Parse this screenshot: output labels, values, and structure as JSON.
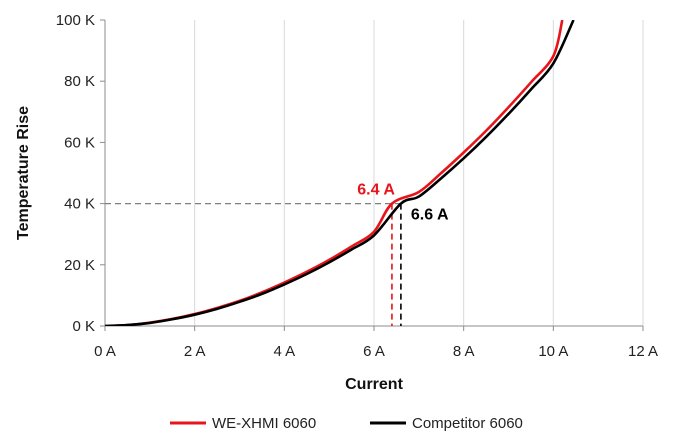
{
  "chart_data": {
    "type": "line",
    "title": "",
    "xlabel": "Current",
    "ylabel": "Temperature Rise",
    "xlim": [
      0,
      12
    ],
    "ylim": [
      0,
      100
    ],
    "x_ticks": [
      {
        "value": 0,
        "label": "0 A"
      },
      {
        "value": 2,
        "label": "2 A"
      },
      {
        "value": 4,
        "label": "4 A"
      },
      {
        "value": 6,
        "label": "6 A"
      },
      {
        "value": 8,
        "label": "8 A"
      },
      {
        "value": 10,
        "label": "10 A"
      },
      {
        "value": 12,
        "label": "12 A"
      }
    ],
    "y_ticks": [
      {
        "value": 0,
        "label": "0 K"
      },
      {
        "value": 20,
        "label": "20 K"
      },
      {
        "value": 40,
        "label": "40 K"
      },
      {
        "value": 60,
        "label": "60 K"
      },
      {
        "value": 80,
        "label": "80 K"
      },
      {
        "value": 100,
        "label": "100 K"
      }
    ],
    "grid": {
      "vertical": true,
      "horizontal": false
    },
    "legend_position": "bottom",
    "series": [
      {
        "name": "WE-XHMI 6060",
        "color": "#e8141b",
        "x": [
          0,
          0.5,
          1,
          1.5,
          2,
          2.5,
          3,
          3.5,
          4,
          4.5,
          5,
          5.5,
          6,
          6.4,
          7,
          7.5,
          8,
          8.5,
          9,
          9.5,
          10,
          10.2
        ],
        "y": [
          0,
          0.3,
          1.1,
          2.3,
          3.9,
          5.9,
          8.2,
          11.0,
          14.2,
          17.7,
          21.6,
          26.0,
          30.8,
          40,
          43.8,
          50.0,
          56.7,
          63.8,
          71.5,
          79.6,
          88.2,
          100
        ]
      },
      {
        "name": "Competitor 6060",
        "color": "#000000",
        "x": [
          0,
          0.5,
          1,
          1.5,
          2,
          2.5,
          3,
          3.5,
          4,
          4.5,
          5,
          5.5,
          6,
          6.6,
          7,
          7.5,
          8,
          8.5,
          9,
          9.5,
          10,
          10.45
        ],
        "y": [
          0,
          0.3,
          1.0,
          2.2,
          3.7,
          5.6,
          7.9,
          10.5,
          13.6,
          17.0,
          20.8,
          25.0,
          29.6,
          40,
          42.3,
          48.3,
          54.8,
          61.8,
          69.3,
          77.3,
          85.8,
          100
        ]
      }
    ],
    "annotations": [
      {
        "label": "6.4 A",
        "x": 6.4,
        "y": 40,
        "color": "#e8141b"
      },
      {
        "label": "6.6 A",
        "x": 6.6,
        "y": 40,
        "color": "#000000"
      }
    ],
    "reference_line": {
      "y": 40,
      "color": "#808080"
    }
  }
}
